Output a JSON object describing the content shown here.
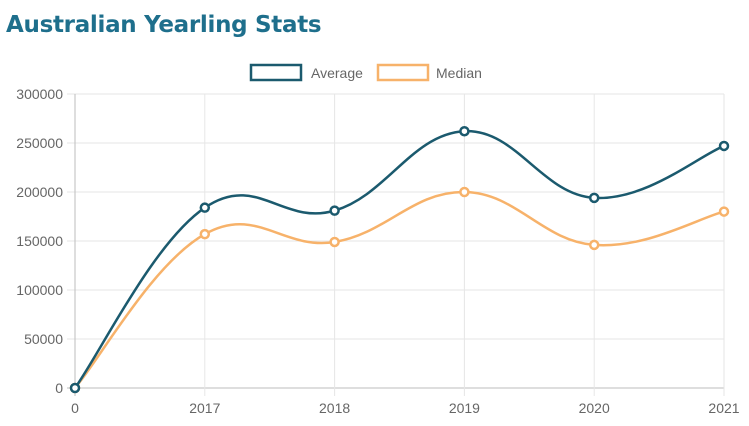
{
  "page": {
    "title": "Australian Yearling Stats"
  },
  "colors": {
    "title": "#1e6f8c",
    "average": "#1b5a6e",
    "median": "#f7b26a",
    "grid": "#e6e6e6",
    "text": "#666666"
  },
  "chart_data": {
    "type": "line",
    "title": "",
    "xlabel": "",
    "ylabel": "",
    "categories": [
      "0",
      "2017",
      "2018",
      "2019",
      "2020",
      "2021"
    ],
    "ylim": [
      0,
      300000
    ],
    "yticks": [
      "0",
      "50000",
      "100000",
      "150000",
      "200000",
      "250000",
      "300000"
    ],
    "grid": true,
    "smooth": true,
    "legend": "top-center",
    "series": [
      {
        "name": "Average",
        "color": "#1b5a6e",
        "values": [
          0,
          184000,
          181000,
          262000,
          194000,
          247000
        ]
      },
      {
        "name": "Median",
        "color": "#f7b26a",
        "values": [
          0,
          157000,
          149000,
          200000,
          146000,
          180000
        ]
      }
    ]
  }
}
